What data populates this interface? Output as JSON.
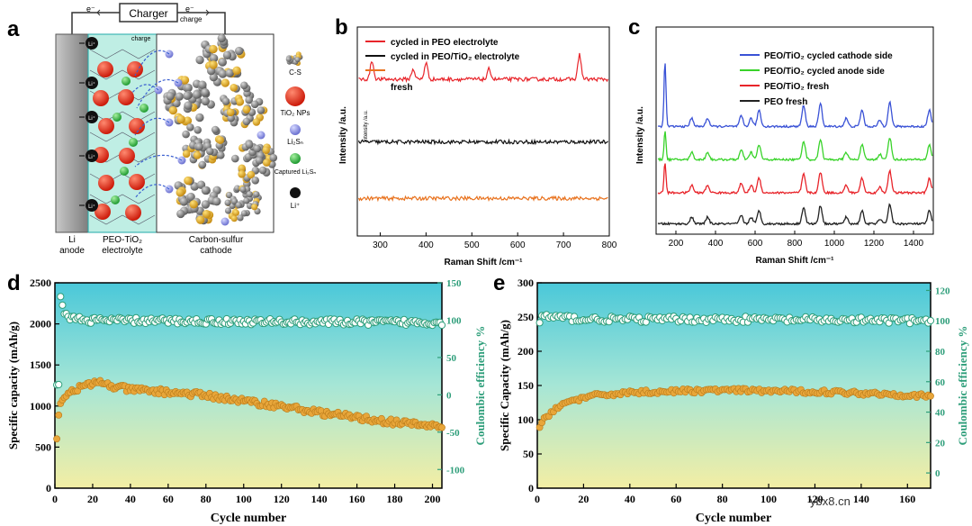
{
  "panel_letters": {
    "a": "a",
    "b": "b",
    "c": "c",
    "d": "d",
    "e": "e"
  },
  "panel_a": {
    "charger": "Charger",
    "electron_left": "e⁻",
    "electron_right": "e⁻",
    "charge_top": "charge",
    "charge_inner": "charge",
    "li_ion": "Li⁺",
    "anode_line1": "Li",
    "anode_line2": "anode",
    "electrolyte_line1": "PEO-TiO₂",
    "electrolyte_line2": "electrolyte",
    "cathode_line1": "Carbon-sulfur",
    "cathode_line2": "cathode",
    "legend": [
      {
        "label": "C-S",
        "color": "#c9a93a"
      },
      {
        "label": "TiO₂ NPs",
        "color": "#e8321e"
      },
      {
        "label": "Li₂Sₙ",
        "color": "#8a8fe0"
      },
      {
        "label": "Captured Li₂Sₙ",
        "color": "#2eb84a"
      },
      {
        "label": "Li⁺",
        "color": "#111111"
      }
    ],
    "colors": {
      "electrolyte": "#bfeee4",
      "anode": "#9a9a9a",
      "tio2": "#e8321e",
      "polysulfide": "#8a8fe0",
      "captured": "#2eb84a",
      "carbon": "#6b6b6b",
      "sulfur": "#d9a520"
    }
  },
  "chart_data": [
    {
      "panel": "b",
      "type": "line",
      "title": "",
      "xlabel": "Raman Shift /cm⁻¹",
      "ylabel": "Intensity /a.u.",
      "ylabel_small": "Intensity /a.u.",
      "xlim": [
        250,
        800
      ],
      "xticks": [
        300,
        400,
        500,
        600,
        700,
        800
      ],
      "legend": [
        {
          "label": "cycled in PEO electrolyte",
          "color": "#e8242a"
        },
        {
          "label": "cycled in PEO/TiO₂ electrolyte",
          "color": "#111111"
        },
        {
          "label": "fresh",
          "color": "#e8721e"
        }
      ],
      "series": [
        {
          "name": "cycled in PEO electrolyte",
          "color": "#e8242a",
          "baseline": 0.75,
          "peaks": [
            [
              282,
              0.09
            ],
            [
              372,
              0.05
            ],
            [
              400,
              0.08
            ],
            [
              538,
              0.05
            ],
            [
              735,
              0.12
            ]
          ]
        },
        {
          "name": "cycled in PEO/TiO₂ electrolyte",
          "color": "#111111",
          "baseline": 0.45,
          "peaks": []
        },
        {
          "name": "fresh",
          "color": "#e8721e",
          "baseline": 0.18,
          "peaks": []
        }
      ]
    },
    {
      "panel": "c",
      "type": "line",
      "title": "",
      "xlabel": "Raman Shift /cm⁻¹",
      "ylabel": "Intensity /a.u.",
      "xlim": [
        100,
        1500
      ],
      "xticks": [
        200,
        400,
        600,
        800,
        1000,
        1200,
        1400
      ],
      "legend": [
        {
          "label": "PEO/TiO₂ cycled cathode side",
          "color": "#3a52d6"
        },
        {
          "label": "PEO/TiO₂ cycled anode side",
          "color": "#39d32a"
        },
        {
          "label": "PEO/TiO₂ fresh",
          "color": "#e8242a"
        },
        {
          "label": "PEO fresh",
          "color": "#222222"
        }
      ],
      "series": [
        {
          "name": "PEO/TiO₂ cycled cathode side",
          "color": "#3a52d6",
          "offset": 0.52,
          "scale": 1.0,
          "tio2_peak": 0.9
        },
        {
          "name": "PEO/TiO₂ cycled anode side",
          "color": "#39d32a",
          "offset": 0.36,
          "scale": 0.9,
          "tio2_peak": 0.4
        },
        {
          "name": "PEO/TiO₂ fresh",
          "color": "#e8242a",
          "offset": 0.2,
          "scale": 0.9,
          "tio2_peak": 0.42
        },
        {
          "name": "PEO fresh",
          "color": "#222222",
          "offset": 0.05,
          "scale": 0.8,
          "tio2_peak": 0.0
        }
      ]
    },
    {
      "panel": "d",
      "type": "scatter",
      "xlabel": "Cycle number",
      "ylabel_left": "Specific capacity (mAh/g)",
      "ylabel_right": "Coulombic efficiency %",
      "xlim": [
        0,
        205
      ],
      "ylim_left": [
        0,
        2500
      ],
      "ylim_right": [
        -125,
        150
      ],
      "xticks": [
        0,
        20,
        40,
        60,
        80,
        100,
        120,
        140,
        160,
        180,
        200
      ],
      "yticks_left": [
        0,
        500,
        1000,
        1500,
        2000,
        2500
      ],
      "yticks_right": [
        -100,
        -50,
        0,
        50,
        100,
        150
      ],
      "capacity_profile": [
        [
          1,
          590
        ],
        [
          2,
          870
        ],
        [
          3,
          1060
        ],
        [
          5,
          1120
        ],
        [
          10,
          1200
        ],
        [
          20,
          1270
        ],
        [
          25,
          1290
        ],
        [
          30,
          1240
        ],
        [
          40,
          1200
        ],
        [
          60,
          1170
        ],
        [
          80,
          1130
        ],
        [
          100,
          1060
        ],
        [
          120,
          1000
        ],
        [
          140,
          920
        ],
        [
          160,
          860
        ],
        [
          180,
          800
        ],
        [
          200,
          760
        ],
        [
          205,
          755
        ]
      ],
      "efficiency_profile": [
        [
          2,
          10
        ],
        [
          3,
          128
        ],
        [
          5,
          112
        ],
        [
          8,
          104
        ],
        [
          15,
          100
        ],
        [
          100,
          98
        ],
        [
          205,
          97
        ]
      ],
      "capacity_color": "#e8a63a",
      "efficiency_color": "#2e9e7a"
    },
    {
      "panel": "e",
      "type": "scatter",
      "xlabel": "Cycle number",
      "ylabel_left": "Specific Capacity (mAh/g)",
      "ylabel_right": "Coulombic efficiency %",
      "xlim": [
        0,
        170
      ],
      "ylim_left": [
        0,
        300
      ],
      "ylim_right": [
        -10,
        125
      ],
      "xticks": [
        0,
        20,
        40,
        60,
        80,
        100,
        120,
        140,
        160
      ],
      "yticks_left": [
        0,
        50,
        100,
        150,
        200,
        250,
        300
      ],
      "yticks_right": [
        0,
        20,
        40,
        60,
        80,
        100,
        120
      ],
      "capacity_profile": [
        [
          1,
          88
        ],
        [
          3,
          100
        ],
        [
          8,
          118
        ],
        [
          15,
          128
        ],
        [
          25,
          135
        ],
        [
          40,
          140
        ],
        [
          80,
          143
        ],
        [
          120,
          141
        ],
        [
          150,
          138
        ],
        [
          170,
          134
        ]
      ],
      "efficiency_profile": [
        [
          1,
          98
        ],
        [
          2,
          103
        ],
        [
          20,
          101
        ],
        [
          80,
          101
        ],
        [
          170,
          100
        ]
      ],
      "capacity_color": "#e8a63a",
      "efficiency_color": "#2e9e7a"
    }
  ],
  "watermark": "ybx8.cn"
}
